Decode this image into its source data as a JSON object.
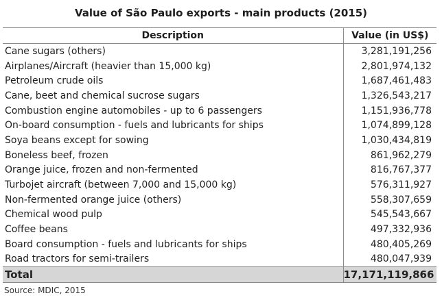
{
  "chart_data": {
    "type": "table",
    "title": "Value of São Paulo exports - main products (2015)",
    "columns": [
      "Description",
      "Value (in US$)"
    ],
    "rows": [
      {
        "description": "Cane sugars (others)",
        "value": "3,281,191,256"
      },
      {
        "description": "Airplanes/Aircraft (heavier than 15,000 kg)",
        "value": "2,801,974,132"
      },
      {
        "description": "Petroleum crude oils",
        "value": "1,687,461,483"
      },
      {
        "description": "Cane, beet and chemical sucrose sugars",
        "value": "1,326,543,217"
      },
      {
        "description": "Combustion engine automobiles - up to 6 passengers",
        "value": "1,151,936,778"
      },
      {
        "description": "On-board consumption - fuels and lubricants for ships",
        "value": "1,074,899,128"
      },
      {
        "description": "Soya beans except for sowing",
        "value": "1,030,434,819"
      },
      {
        "description": "Boneless beef, frozen",
        "value": "861,962,279"
      },
      {
        "description": "Orange juice, frozen and non-fermented",
        "value": "816,767,377"
      },
      {
        "description": "Turbojet aircraft (between 7,000 and 15,000 kg)",
        "value": "576,311,927"
      },
      {
        "description": "Non-fermented orange juice (others)",
        "value": "558,307,659"
      },
      {
        "description": "Chemical wood pulp",
        "value": "545,543,667"
      },
      {
        "description": "Coffee beans",
        "value": "497,332,936"
      },
      {
        "description": "Board consumption - fuels and lubricants for ships",
        "value": "480,405,269"
      },
      {
        "description": "Road tractors for semi-trailers",
        "value": "480,047,939"
      }
    ],
    "total": {
      "label": "Total",
      "value": "17,171,119,866"
    },
    "source": "Source: MDIC, 2015"
  },
  "colors": {
    "total_row_bg": "#d6d6d6",
    "rule": "#8a8a8a",
    "text": "#222222"
  }
}
